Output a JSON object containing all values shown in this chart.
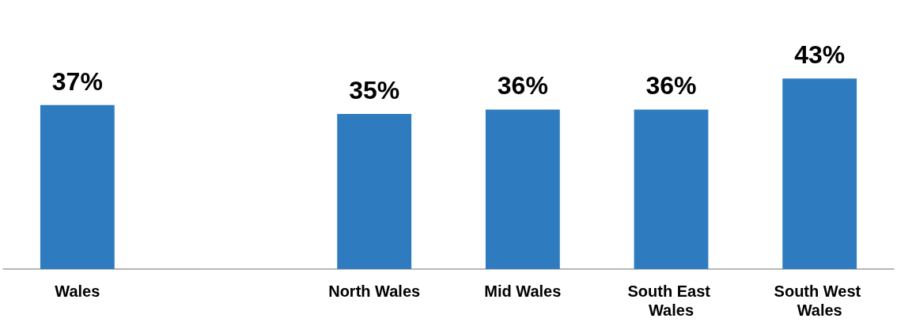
{
  "chart_data": {
    "type": "bar",
    "categories": [
      "Wales",
      null,
      "North Wales",
      "Mid Wales",
      "South East Wales",
      "South West Wales"
    ],
    "values": [
      37,
      null,
      35,
      36,
      36,
      43
    ],
    "value_labels": [
      "37%",
      null,
      "35%",
      "36%",
      "36%",
      "43%"
    ],
    "color": "#2e7bbf"
  }
}
